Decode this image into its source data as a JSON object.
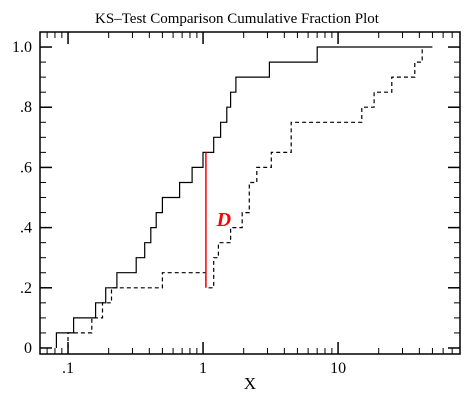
{
  "chart_data": {
    "type": "line",
    "title": "KS–Test Comparison Cumulative Fraction Plot",
    "xlabel": "X",
    "ylabel": "",
    "xscale": "log",
    "xlim": [
      0.062,
      80
    ],
    "ylim": [
      -0.02,
      1.05
    ],
    "grid": false,
    "x_ticks": [
      {
        "value": 0.1,
        "label": ".1"
      },
      {
        "value": 1,
        "label": "1"
      },
      {
        "value": 10,
        "label": "10"
      }
    ],
    "y_ticks": [
      {
        "value": 0,
        "label": "0"
      },
      {
        "value": 0.2,
        "label": ".2"
      },
      {
        "value": 0.4,
        "label": ".4"
      },
      {
        "value": 0.6,
        "label": ".6"
      },
      {
        "value": 0.8,
        "label": ".8"
      },
      {
        "value": 1.0,
        "label": "1.0"
      }
    ],
    "series": [
      {
        "style": "solid",
        "color": "#000000",
        "x": [
          0.082,
          0.11,
          0.16,
          0.19,
          0.23,
          0.32,
          0.37,
          0.41,
          0.45,
          0.5,
          0.67,
          0.83,
          1.0,
          1.2,
          1.35,
          1.5,
          1.6,
          1.75,
          3.1,
          7.0,
          50.0
        ],
        "y": [
          0.05,
          0.1,
          0.15,
          0.2,
          0.25,
          0.3,
          0.35,
          0.4,
          0.45,
          0.5,
          0.55,
          0.6,
          0.65,
          0.7,
          0.75,
          0.8,
          0.85,
          0.9,
          0.95,
          1.0,
          1.0
        ]
      },
      {
        "style": "dashed",
        "color": "#000000",
        "x": [
          0.1,
          0.15,
          0.18,
          0.21,
          0.5,
          1.05,
          1.2,
          1.3,
          1.6,
          1.95,
          2.2,
          2.5,
          3.2,
          4.5,
          15.0,
          18.5,
          25.0,
          37.0,
          42.0
        ],
        "y": [
          0.05,
          0.1,
          0.15,
          0.2,
          0.25,
          0.2,
          0.3,
          0.35,
          0.4,
          0.45,
          0.55,
          0.6,
          0.65,
          0.75,
          0.8,
          0.85,
          0.9,
          0.95,
          1.0
        ]
      }
    ],
    "annotation": {
      "label": "D",
      "color": "#ff0000",
      "x": 1.05,
      "y_from": 0.2,
      "y_to": 0.65
    }
  }
}
